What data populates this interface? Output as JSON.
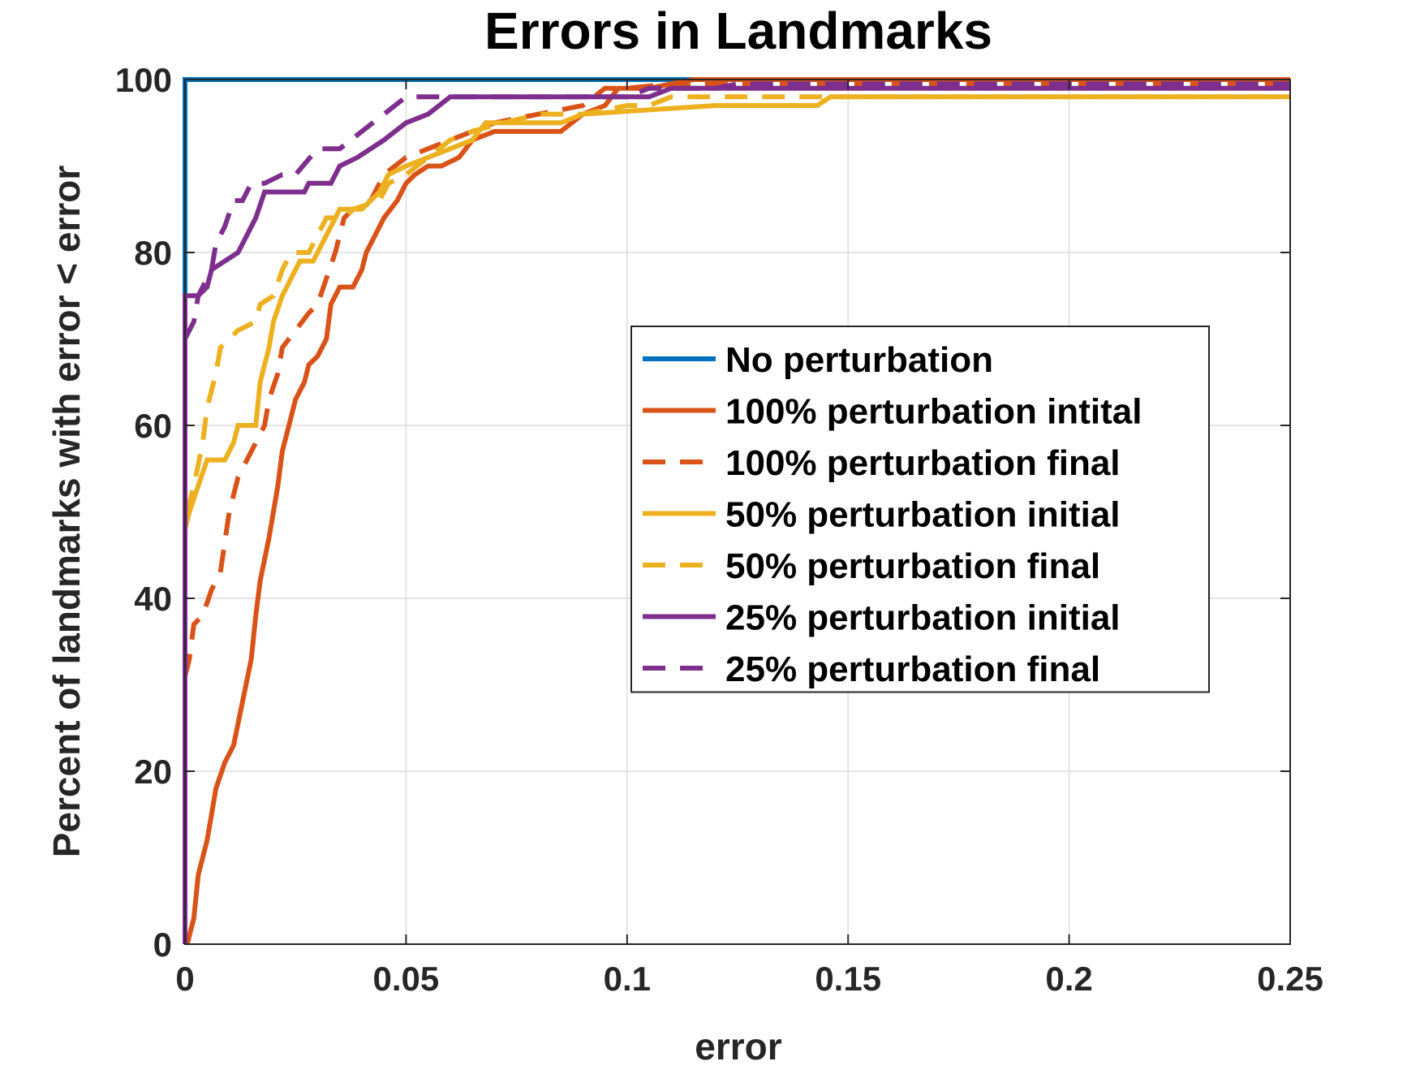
{
  "chart_data": {
    "type": "line",
    "title": "Errors in Landmarks",
    "xlabel": "error",
    "ylabel": "Percent of landmarks with error < error",
    "xlim": [
      0,
      0.25
    ],
    "ylim": [
      0,
      100
    ],
    "xticks": [
      0,
      0.05,
      0.1,
      0.15,
      0.2,
      0.25
    ],
    "xtick_labels": [
      "0",
      "0.05",
      "0.1",
      "0.15",
      "0.2",
      "0.25"
    ],
    "yticks": [
      0,
      20,
      40,
      60,
      80,
      100
    ],
    "ytick_labels": [
      "0",
      "20",
      "40",
      "60",
      "80",
      "100"
    ],
    "grid": true,
    "legend_position": "center-right",
    "series": [
      {
        "name": "No perturbation",
        "color": "#0072BD",
        "dash": "solid",
        "points": [
          [
            0,
            0
          ],
          [
            0,
            100
          ],
          [
            0.115,
            100
          ],
          [
            0.25,
            100
          ]
        ]
      },
      {
        "name": "100% perturbation intital",
        "color": "#D95319",
        "dash": "solid",
        "points": [
          [
            0.0005,
            0
          ],
          [
            0.001,
            1
          ],
          [
            0.002,
            3
          ],
          [
            0.003,
            8
          ],
          [
            0.005,
            12
          ],
          [
            0.006,
            15
          ],
          [
            0.007,
            18
          ],
          [
            0.009,
            21
          ],
          [
            0.011,
            23
          ],
          [
            0.013,
            28
          ],
          [
            0.015,
            33
          ],
          [
            0.016,
            38
          ],
          [
            0.017,
            42
          ],
          [
            0.019,
            47
          ],
          [
            0.021,
            53
          ],
          [
            0.022,
            57
          ],
          [
            0.024,
            61
          ],
          [
            0.025,
            63
          ],
          [
            0.027,
            65
          ],
          [
            0.028,
            67
          ],
          [
            0.03,
            68
          ],
          [
            0.032,
            70
          ],
          [
            0.033,
            74
          ],
          [
            0.035,
            76
          ],
          [
            0.038,
            76
          ],
          [
            0.04,
            78
          ],
          [
            0.041,
            80
          ],
          [
            0.043,
            82
          ],
          [
            0.045,
            84
          ],
          [
            0.048,
            86
          ],
          [
            0.05,
            88
          ],
          [
            0.052,
            89
          ],
          [
            0.055,
            90
          ],
          [
            0.058,
            90
          ],
          [
            0.062,
            91
          ],
          [
            0.065,
            93
          ],
          [
            0.07,
            94
          ],
          [
            0.085,
            94
          ],
          [
            0.09,
            96
          ],
          [
            0.095,
            97
          ],
          [
            0.098,
            99
          ],
          [
            0.105,
            99
          ],
          [
            0.115,
            100
          ],
          [
            0.25,
            100
          ]
        ]
      },
      {
        "name": "100% perturbation final",
        "color": "#D95319",
        "dash": "dashed",
        "points": [
          [
            0,
            31
          ],
          [
            0.001,
            33
          ],
          [
            0.002,
            37
          ],
          [
            0.004,
            38
          ],
          [
            0.006,
            41
          ],
          [
            0.008,
            43
          ],
          [
            0.01,
            50
          ],
          [
            0.012,
            54
          ],
          [
            0.015,
            57
          ],
          [
            0.018,
            60
          ],
          [
            0.019,
            63
          ],
          [
            0.021,
            66
          ],
          [
            0.022,
            69
          ],
          [
            0.025,
            71
          ],
          [
            0.028,
            73
          ],
          [
            0.03,
            74
          ],
          [
            0.032,
            77
          ],
          [
            0.034,
            80
          ],
          [
            0.036,
            84
          ],
          [
            0.038,
            85
          ],
          [
            0.042,
            86
          ],
          [
            0.045,
            89
          ],
          [
            0.05,
            91
          ],
          [
            0.055,
            92
          ],
          [
            0.06,
            93
          ],
          [
            0.065,
            94
          ],
          [
            0.07,
            95
          ],
          [
            0.08,
            96
          ],
          [
            0.09,
            97
          ],
          [
            0.095,
            99
          ],
          [
            0.1,
            99
          ],
          [
            0.11,
            99.5
          ],
          [
            0.25,
            99.5
          ]
        ]
      },
      {
        "name": "50% perturbation initial",
        "color": "#EDB120",
        "dash": "solid",
        "points": [
          [
            0,
            48
          ],
          [
            0.001,
            50
          ],
          [
            0.003,
            53
          ],
          [
            0.005,
            56
          ],
          [
            0.009,
            56
          ],
          [
            0.011,
            58
          ],
          [
            0.012,
            60
          ],
          [
            0.016,
            60
          ],
          [
            0.017,
            65
          ],
          [
            0.018,
            67
          ],
          [
            0.019,
            69
          ],
          [
            0.02,
            72
          ],
          [
            0.022,
            75
          ],
          [
            0.024,
            77
          ],
          [
            0.026,
            79
          ],
          [
            0.029,
            79
          ],
          [
            0.031,
            81
          ],
          [
            0.033,
            83
          ],
          [
            0.035,
            85
          ],
          [
            0.04,
            85
          ],
          [
            0.042,
            86
          ],
          [
            0.044,
            87
          ],
          [
            0.046,
            89
          ],
          [
            0.05,
            90
          ],
          [
            0.055,
            91
          ],
          [
            0.06,
            92
          ],
          [
            0.065,
            93
          ],
          [
            0.068,
            95
          ],
          [
            0.085,
            95
          ],
          [
            0.09,
            96
          ],
          [
            0.12,
            97
          ],
          [
            0.143,
            97
          ],
          [
            0.146,
            98
          ],
          [
            0.25,
            98
          ]
        ]
      },
      {
        "name": "50% perturbation final",
        "color": "#EDB120",
        "dash": "dashed",
        "points": [
          [
            0,
            50
          ],
          [
            0.001,
            51
          ],
          [
            0.002,
            53
          ],
          [
            0.004,
            58
          ],
          [
            0.005,
            62
          ],
          [
            0.007,
            66
          ],
          [
            0.008,
            69
          ],
          [
            0.012,
            71
          ],
          [
            0.016,
            72
          ],
          [
            0.017,
            74
          ],
          [
            0.02,
            75
          ],
          [
            0.022,
            78
          ],
          [
            0.024,
            80
          ],
          [
            0.028,
            80
          ],
          [
            0.03,
            82
          ],
          [
            0.032,
            84
          ],
          [
            0.036,
            84
          ],
          [
            0.038,
            85
          ],
          [
            0.044,
            86
          ],
          [
            0.046,
            88
          ],
          [
            0.05,
            89
          ],
          [
            0.055,
            91
          ],
          [
            0.06,
            93
          ],
          [
            0.065,
            94
          ],
          [
            0.072,
            95
          ],
          [
            0.08,
            96
          ],
          [
            0.09,
            96
          ],
          [
            0.1,
            97
          ],
          [
            0.105,
            97
          ],
          [
            0.11,
            98
          ],
          [
            0.25,
            98
          ]
        ]
      },
      {
        "name": "25% perturbation initial",
        "color": "#7E2F8E",
        "dash": "solid",
        "points": [
          [
            0,
            0
          ],
          [
            0,
            75
          ],
          [
            0.003,
            75
          ],
          [
            0.005,
            76
          ],
          [
            0.006,
            78
          ],
          [
            0.009,
            79
          ],
          [
            0.012,
            80
          ],
          [
            0.014,
            82
          ],
          [
            0.016,
            84
          ],
          [
            0.018,
            87
          ],
          [
            0.027,
            87
          ],
          [
            0.028,
            88
          ],
          [
            0.033,
            88
          ],
          [
            0.035,
            90
          ],
          [
            0.039,
            91
          ],
          [
            0.045,
            93
          ],
          [
            0.05,
            95
          ],
          [
            0.055,
            96
          ],
          [
            0.06,
            98
          ],
          [
            0.105,
            98
          ],
          [
            0.11,
            99
          ],
          [
            0.25,
            99
          ]
        ]
      },
      {
        "name": "25% perturbation final",
        "color": "#7E2F8E",
        "dash": "dashed",
        "points": [
          [
            0,
            70
          ],
          [
            0.001,
            71
          ],
          [
            0.002,
            72
          ],
          [
            0.003,
            75
          ],
          [
            0.004,
            76
          ],
          [
            0.006,
            78
          ],
          [
            0.007,
            81
          ],
          [
            0.009,
            83
          ],
          [
            0.011,
            86
          ],
          [
            0.013,
            86
          ],
          [
            0.015,
            88
          ],
          [
            0.018,
            88
          ],
          [
            0.022,
            89
          ],
          [
            0.025,
            89
          ],
          [
            0.03,
            92
          ],
          [
            0.035,
            92
          ],
          [
            0.04,
            94
          ],
          [
            0.045,
            96
          ],
          [
            0.05,
            98
          ],
          [
            0.055,
            98
          ],
          [
            0.1,
            98
          ],
          [
            0.105,
            99
          ],
          [
            0.12,
            99
          ],
          [
            0.125,
            99.5
          ],
          [
            0.25,
            99.5
          ]
        ]
      }
    ]
  }
}
